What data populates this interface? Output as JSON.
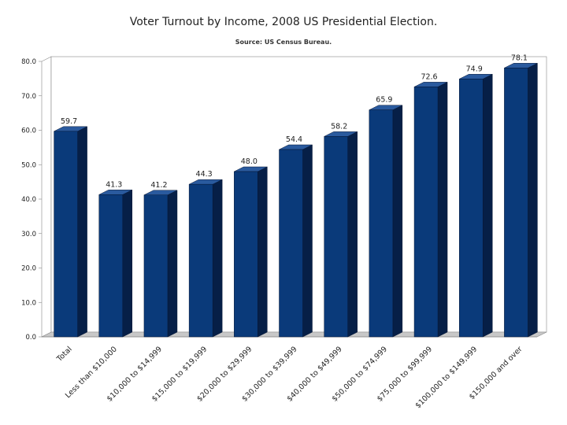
{
  "chart_data": {
    "type": "bar",
    "title": "Voter Turnout by Income, 2008 US Presidential Election.",
    "subtitle": "Source: US Census Bureau.",
    "xlabel": "",
    "ylabel": "",
    "ylim": [
      0,
      80
    ],
    "yticks": [
      "0.0",
      "10.0",
      "20.0",
      "30.0",
      "40.0",
      "50.0",
      "60.0",
      "70.0",
      "80.0"
    ],
    "grid": false,
    "style": "3d",
    "colors": {
      "bar_front": "#0a3a7a",
      "bar_top": "#2a5a9e",
      "bar_side": "#061f47",
      "floor": "#c8c8c8"
    },
    "categories": [
      "Total",
      "Less than $10,000",
      "$10,000 to $14,999",
      "$15,000 to $19,999",
      "$20,000 to $29,999",
      "$30,000 to $39,999",
      "$40,000 to $49,999",
      "$50,000 to $74,999",
      "$75,000 to $99,999",
      "$100,000 to $149,999",
      "$150,000 and over"
    ],
    "values": [
      59.7,
      41.3,
      41.2,
      44.3,
      48.0,
      54.4,
      58.2,
      65.9,
      72.6,
      74.9,
      78.1
    ],
    "value_labels": [
      "59.7",
      "41.3",
      "41.2",
      "44.3",
      "48.0",
      "54.4",
      "58.2",
      "65.9",
      "72.6",
      "74.9",
      "78.1"
    ]
  }
}
